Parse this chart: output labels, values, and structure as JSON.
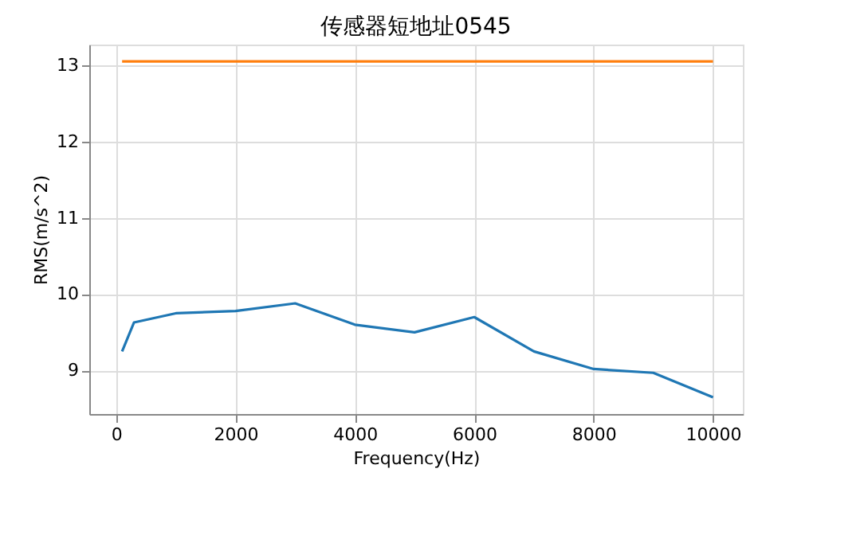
{
  "chart_data": {
    "type": "line",
    "title": "传感器短地址0545",
    "xlabel": "Frequency(Hz)",
    "ylabel": "RMS(m/s^2)",
    "x": [
      100,
      300,
      1000,
      2000,
      3000,
      4000,
      5000,
      6000,
      7000,
      8000,
      9000,
      10000
    ],
    "series": [
      {
        "color": "#1f77b4",
        "values": [
          9.25,
          9.63,
          9.75,
          9.78,
          9.88,
          9.6,
          9.5,
          9.7,
          9.25,
          9.02,
          8.97,
          8.65
        ]
      },
      {
        "color": "#ff7f0e",
        "values": [
          13.05,
          13.05,
          13.05,
          13.05,
          13.05,
          13.05,
          13.05,
          13.05,
          13.05,
          13.05,
          13.05,
          13.05
        ]
      }
    ],
    "xlim": [
      -450,
      10500
    ],
    "ylim": [
      8.43,
      13.27
    ],
    "xticks": [
      0,
      2000,
      4000,
      6000,
      8000,
      10000
    ],
    "yticks": [
      9,
      10,
      11,
      12,
      13
    ],
    "grid": true,
    "line_style": "solid",
    "marker": "none"
  }
}
